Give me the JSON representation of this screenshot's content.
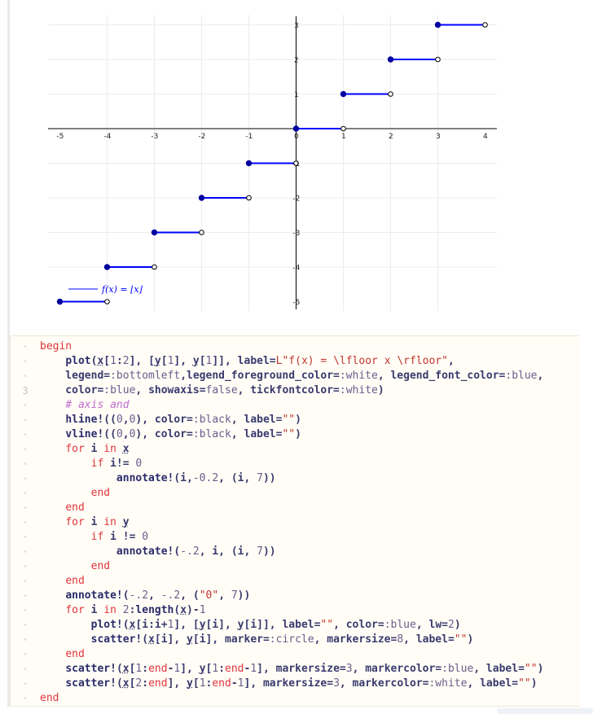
{
  "chart_data": {
    "type": "step",
    "title": "",
    "xlabel": "",
    "ylabel": "",
    "xlim": [
      -5.3,
      4.3
    ],
    "ylim": [
      -5.2,
      3.3
    ],
    "grid": true,
    "legend_position": "bottom-left",
    "legend": [
      {
        "name": "f(x) = ⌊x⌋",
        "color": "#0000ff"
      }
    ],
    "x_tick_labels": [
      "-5",
      "-4",
      "-3",
      "-2",
      "-1",
      "0",
      "1",
      "2",
      "3",
      "4"
    ],
    "y_tick_labels": [
      "3",
      "2",
      "1",
      "-1",
      "-2",
      "-3",
      "-4",
      "-5"
    ],
    "series": [
      {
        "name": "f(x) = ⌊x⌋",
        "color": "#0000ff",
        "segments": [
          {
            "x": [
              -5,
              -4
            ],
            "y": -5
          },
          {
            "x": [
              -4,
              -3
            ],
            "y": -4
          },
          {
            "x": [
              -3,
              -2
            ],
            "y": -3
          },
          {
            "x": [
              -2,
              -1
            ],
            "y": -2
          },
          {
            "x": [
              -1,
              0
            ],
            "y": -1
          },
          {
            "x": [
              0,
              1
            ],
            "y": 0
          },
          {
            "x": [
              1,
              2
            ],
            "y": 1
          },
          {
            "x": [
              2,
              3
            ],
            "y": 2
          },
          {
            "x": [
              3,
              4
            ],
            "y": 3
          }
        ]
      }
    ],
    "filled_point_color": "#0000a0",
    "open_point_fill": "#ffffff"
  },
  "code": {
    "lines": [
      [
        {
          "t": "begin",
          "c": "kw"
        }
      ],
      [
        {
          "t": "    "
        },
        {
          "t": "plot",
          "c": "fn"
        },
        {
          "t": "("
        },
        {
          "t": "x",
          "c": "ul"
        },
        {
          "t": "["
        },
        {
          "t": "1",
          "c": "num"
        },
        {
          "t": ":"
        },
        {
          "t": "2",
          "c": "num"
        },
        {
          "t": "], ["
        },
        {
          "t": "y",
          "c": "ul"
        },
        {
          "t": "["
        },
        {
          "t": "1",
          "c": "num"
        },
        {
          "t": "], "
        },
        {
          "t": "y",
          "c": "ul"
        },
        {
          "t": "["
        },
        {
          "t": "1",
          "c": "num"
        },
        {
          "t": "]], label="
        },
        {
          "t": "L\"f(x) = \\lfloor x \\rfloor\"",
          "c": "str"
        },
        {
          "t": ","
        }
      ],
      [
        {
          "t": "    legend="
        },
        {
          "t": ":bottomleft",
          "c": "sym"
        },
        {
          "t": ",legend_foreground_color="
        },
        {
          "t": ":white",
          "c": "sym"
        },
        {
          "t": ", legend_font_color="
        },
        {
          "t": ":blue",
          "c": "sym"
        },
        {
          "t": ","
        }
      ],
      [
        {
          "t": "    color="
        },
        {
          "t": ":blue",
          "c": "sym"
        },
        {
          "t": ", showaxis="
        },
        {
          "t": "false",
          "c": "num"
        },
        {
          "t": ", tickfontcolor="
        },
        {
          "t": ":white",
          "c": "sym"
        },
        {
          "t": ")"
        }
      ],
      [
        {
          "t": "    "
        },
        {
          "t": "# axis and",
          "c": "cm"
        }
      ],
      [
        {
          "t": "    "
        },
        {
          "t": "hline!",
          "c": "fn"
        },
        {
          "t": "(("
        },
        {
          "t": "0",
          "c": "num"
        },
        {
          "t": ","
        },
        {
          "t": "0",
          "c": "num"
        },
        {
          "t": "), color="
        },
        {
          "t": ":black",
          "c": "sym"
        },
        {
          "t": ", label="
        },
        {
          "t": "\"\"",
          "c": "str"
        },
        {
          "t": ")"
        }
      ],
      [
        {
          "t": "    "
        },
        {
          "t": "vline!",
          "c": "fn"
        },
        {
          "t": "(("
        },
        {
          "t": "0",
          "c": "num"
        },
        {
          "t": ","
        },
        {
          "t": "0",
          "c": "num"
        },
        {
          "t": "), color="
        },
        {
          "t": ":black",
          "c": "sym"
        },
        {
          "t": ", label="
        },
        {
          "t": "\"\"",
          "c": "str"
        },
        {
          "t": ")"
        }
      ],
      [
        {
          "t": "    "
        },
        {
          "t": "for",
          "c": "kw"
        },
        {
          "t": " i "
        },
        {
          "t": "in",
          "c": "kw"
        },
        {
          "t": " "
        },
        {
          "t": "x",
          "c": "ul"
        }
      ],
      [
        {
          "t": "        "
        },
        {
          "t": "if",
          "c": "kw"
        },
        {
          "t": " i!= "
        },
        {
          "t": "0",
          "c": "num"
        }
      ],
      [
        {
          "t": "            "
        },
        {
          "t": "annotate!",
          "c": "fn"
        },
        {
          "t": "(i,"
        },
        {
          "t": "-0.2",
          "c": "num"
        },
        {
          "t": ", (i, "
        },
        {
          "t": "7",
          "c": "num"
        },
        {
          "t": "))"
        }
      ],
      [
        {
          "t": "        "
        },
        {
          "t": "end",
          "c": "kw"
        }
      ],
      [
        {
          "t": "    "
        },
        {
          "t": "end",
          "c": "kw"
        }
      ],
      [
        {
          "t": "    "
        },
        {
          "t": "for",
          "c": "kw"
        },
        {
          "t": " i "
        },
        {
          "t": "in",
          "c": "kw"
        },
        {
          "t": " "
        },
        {
          "t": "y",
          "c": "ul"
        }
      ],
      [
        {
          "t": "        "
        },
        {
          "t": "if",
          "c": "kw"
        },
        {
          "t": " i != "
        },
        {
          "t": "0",
          "c": "num"
        }
      ],
      [
        {
          "t": "            "
        },
        {
          "t": "annotate!",
          "c": "fn"
        },
        {
          "t": "("
        },
        {
          "t": "-.2",
          "c": "num"
        },
        {
          "t": ", i, (i, "
        },
        {
          "t": "7",
          "c": "num"
        },
        {
          "t": "))"
        }
      ],
      [
        {
          "t": "        "
        },
        {
          "t": "end",
          "c": "kw"
        }
      ],
      [
        {
          "t": "    "
        },
        {
          "t": "end",
          "c": "kw"
        }
      ],
      [
        {
          "t": "    "
        },
        {
          "t": "annotate!",
          "c": "fn"
        },
        {
          "t": "("
        },
        {
          "t": "-.2",
          "c": "num"
        },
        {
          "t": ", "
        },
        {
          "t": "-.2",
          "c": "num"
        },
        {
          "t": ", ("
        },
        {
          "t": "\"0\"",
          "c": "str"
        },
        {
          "t": ", "
        },
        {
          "t": "7",
          "c": "num"
        },
        {
          "t": "))"
        }
      ],
      [
        {
          "t": "    "
        },
        {
          "t": "for",
          "c": "kw"
        },
        {
          "t": " i "
        },
        {
          "t": "in",
          "c": "kw"
        },
        {
          "t": " "
        },
        {
          "t": "2",
          "c": "num"
        },
        {
          "t": ":"
        },
        {
          "t": "length",
          "c": "fn"
        },
        {
          "t": "("
        },
        {
          "t": "x",
          "c": "ul"
        },
        {
          "t": ")-"
        },
        {
          "t": "1",
          "c": "num"
        }
      ],
      [
        {
          "t": "        "
        },
        {
          "t": "plot!",
          "c": "fn"
        },
        {
          "t": "("
        },
        {
          "t": "x",
          "c": "ul"
        },
        {
          "t": "[i:i+"
        },
        {
          "t": "1",
          "c": "num"
        },
        {
          "t": "], ["
        },
        {
          "t": "y",
          "c": "ul"
        },
        {
          "t": "[i], "
        },
        {
          "t": "y",
          "c": "ul"
        },
        {
          "t": "[i]], label="
        },
        {
          "t": "\"\"",
          "c": "str"
        },
        {
          "t": ", color="
        },
        {
          "t": ":blue",
          "c": "sym"
        },
        {
          "t": ", lw="
        },
        {
          "t": "2",
          "c": "num"
        },
        {
          "t": ")"
        }
      ],
      [
        {
          "t": "        "
        },
        {
          "t": "scatter!",
          "c": "fn"
        },
        {
          "t": "("
        },
        {
          "t": "x",
          "c": "ul"
        },
        {
          "t": "[i], "
        },
        {
          "t": "y",
          "c": "ul"
        },
        {
          "t": "[i], marker="
        },
        {
          "t": ":circle",
          "c": "sym"
        },
        {
          "t": ", markersize="
        },
        {
          "t": "8",
          "c": "num"
        },
        {
          "t": ", label="
        },
        {
          "t": "\"\"",
          "c": "str"
        },
        {
          "t": ")"
        }
      ],
      [
        {
          "t": "    "
        },
        {
          "t": "end",
          "c": "kw"
        }
      ],
      [
        {
          "t": "    "
        },
        {
          "t": "scatter!",
          "c": "fn"
        },
        {
          "t": "("
        },
        {
          "t": "x",
          "c": "ul"
        },
        {
          "t": "["
        },
        {
          "t": "1",
          "c": "num"
        },
        {
          "t": ":"
        },
        {
          "t": "end",
          "c": "kw"
        },
        {
          "t": "-"
        },
        {
          "t": "1",
          "c": "num"
        },
        {
          "t": "], "
        },
        {
          "t": "y",
          "c": "ul"
        },
        {
          "t": "["
        },
        {
          "t": "1",
          "c": "num"
        },
        {
          "t": ":"
        },
        {
          "t": "end",
          "c": "kw"
        },
        {
          "t": "-"
        },
        {
          "t": "1",
          "c": "num"
        },
        {
          "t": "], markersize="
        },
        {
          "t": "3",
          "c": "num"
        },
        {
          "t": ", markercolor="
        },
        {
          "t": ":blue",
          "c": "sym"
        },
        {
          "t": ", label="
        },
        {
          "t": "\"\"",
          "c": "str"
        },
        {
          "t": ")"
        }
      ],
      [
        {
          "t": "    "
        },
        {
          "t": "scatter!",
          "c": "fn"
        },
        {
          "t": "("
        },
        {
          "t": "x",
          "c": "ul"
        },
        {
          "t": "["
        },
        {
          "t": "2",
          "c": "num"
        },
        {
          "t": ":"
        },
        {
          "t": "end",
          "c": "kw"
        },
        {
          "t": "], "
        },
        {
          "t": "y",
          "c": "ul"
        },
        {
          "t": "["
        },
        {
          "t": "1",
          "c": "num"
        },
        {
          "t": ":"
        },
        {
          "t": "end",
          "c": "kw"
        },
        {
          "t": "-"
        },
        {
          "t": "1",
          "c": "num"
        },
        {
          "t": "], markersize="
        },
        {
          "t": "3",
          "c": "num"
        },
        {
          "t": ", markercolor="
        },
        {
          "t": ":white",
          "c": "sym"
        },
        {
          "t": ", label="
        },
        {
          "t": "\"\"",
          "c": "str"
        },
        {
          "t": ")"
        }
      ],
      [
        {
          "t": "end",
          "c": "kw"
        }
      ]
    ],
    "gutter": [
      "·",
      "·",
      "·",
      "3",
      "·",
      "·",
      "·",
      "·",
      "·",
      "·",
      "·",
      "·",
      "·",
      "·",
      "·",
      "·",
      "·",
      "·",
      "·",
      "·",
      "·",
      "·",
      "·",
      "·",
      "·"
    ]
  }
}
